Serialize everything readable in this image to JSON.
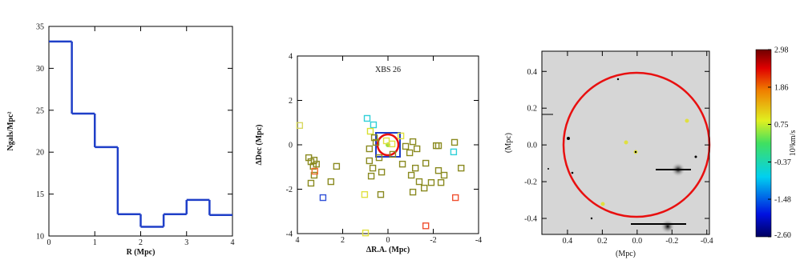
{
  "chart_data": [
    {
      "type": "histogram",
      "x_label": "R (Mpc)",
      "y_label": "Ngals/Mpc²",
      "color": "#1f3fc8",
      "bins": [
        0,
        0.5,
        1,
        1.5,
        2,
        2.5,
        3,
        3.5,
        4
      ],
      "values": [
        33.2,
        24.6,
        20.6,
        12.6,
        11.1,
        12.6,
        14.3,
        12.5
      ],
      "xlim": [
        0,
        4
      ],
      "xticks": [
        0,
        1,
        2,
        3,
        4
      ],
      "ylim": [
        10,
        35
      ],
      "yticks": [
        10,
        15,
        20,
        25,
        30,
        35
      ]
    },
    {
      "type": "scatter",
      "title": "XBS 26",
      "x_label": "ΔR.A. (Mpc)",
      "y_label": "ΔDec (Mpc)",
      "x": [
        3.9,
        3.5,
        3.4,
        3.3,
        3.26,
        3.16,
        3.26,
        3.23,
        3.4,
        2.87,
        2.52,
        2.27,
        0.92,
        0.64,
        0.78,
        0.6,
        0.53,
        0.82,
        0.82,
        0.67,
        0.74,
        0.39,
        0.28,
        1.03,
        0.32,
        -0.21,
        -0.18,
        0.07,
        -0.57,
        -0.78,
        -0.96,
        -1.1,
        -0.64,
        -1.03,
        -1.28,
        -1.21,
        -1.38,
        -1.1,
        -1.6,
        -1.67,
        -1.91,
        -2.13,
        -2.23,
        -2.23,
        -2.34,
        -2.48,
        -2.94,
        -2.9,
        -3.23,
        -2.98,
        -1.67,
        0.99
      ],
      "y": [
        0.87,
        -0.58,
        -0.76,
        -0.97,
        -0.69,
        -0.87,
        -1.37,
        -1.19,
        -1.73,
        -2.38,
        -1.66,
        -0.97,
        1.19,
        0.9,
        0.61,
        0.32,
        0.11,
        -0.18,
        -0.72,
        -1.05,
        -1.41,
        -0.58,
        -1.23,
        -2.24,
        -2.24,
        -0.43,
        0.04,
        0.18,
        0.4,
        -0.07,
        -0.36,
        0.14,
        -0.87,
        -1.37,
        -0.18,
        -1.05,
        -1.66,
        -2.13,
        -1.95,
        -0.83,
        -1.7,
        -0.04,
        -0.04,
        -1.16,
        -1.7,
        -1.37,
        0.11,
        -0.32,
        -1.05,
        -2.38,
        -3.65,
        -3.97
      ],
      "colors": [
        "#d8d860",
        "#8a8a20",
        "#8a8a20",
        "#8a8a20",
        "#8a8a20",
        "#8a8a20",
        "#8a8a20",
        "#f07030",
        "#8a8a20",
        "#3050d8",
        "#8a8a20",
        "#8a8a20",
        "#30d0d8",
        "#30d0d8",
        "#d8e030",
        "#8a8a20",
        "#8a8a20",
        "#8a8a20",
        "#8a8a20",
        "#8a8a20",
        "#8a8a20",
        "#8a8a20",
        "#8a8a20",
        "#e0e040",
        "#8a8a20",
        "#8a8a20",
        "#e0e040",
        "#e0e040",
        "#e0e040",
        "#8a8a20",
        "#8a8a20",
        "#8a8a20",
        "#8a8a20",
        "#8a8a20",
        "#8a8a20",
        "#8a8a20",
        "#8a8a20",
        "#8a8a20",
        "#8a8a20",
        "#8a8a20",
        "#8a8a20",
        "#8a8a20",
        "#8a8a20",
        "#8a8a20",
        "#8a8a20",
        "#8a8a20",
        "#8a8a20",
        "#30d0d8",
        "#8a8a20",
        "#f05030",
        "#f05030",
        "#e0e040"
      ],
      "xlim": [
        4,
        -4
      ],
      "xticks": [
        4,
        2,
        0,
        -2,
        -4
      ],
      "ylim": [
        -4,
        4
      ],
      "yticks": [
        -4,
        -2,
        0,
        2,
        4
      ]
    },
    {
      "type": "image",
      "x_label": "(Mpc)",
      "y_label": "(Mpc)",
      "xlim": [
        0.547,
        -0.415
      ],
      "xticks": [
        0.4,
        0.2,
        {
          "value": 0,
          "label": "0.0"
        },
        -0.2,
        -0.4
      ],
      "ylim": [
        -0.487,
        0.51
      ],
      "yticks": [
        -0.4,
        -0.2,
        {
          "value": 0,
          "label": "0.0"
        },
        0.2,
        0.4
      ],
      "colorbar": {
        "label": "10³km/s",
        "clim": [
          -2.6,
          2.98
        ],
        "ticks": [
          2.98,
          1.86,
          0.75,
          -0.37,
          -1.48,
          {
            "value": -2.6,
            "label": "-2.60"
          }
        ]
      }
    }
  ]
}
